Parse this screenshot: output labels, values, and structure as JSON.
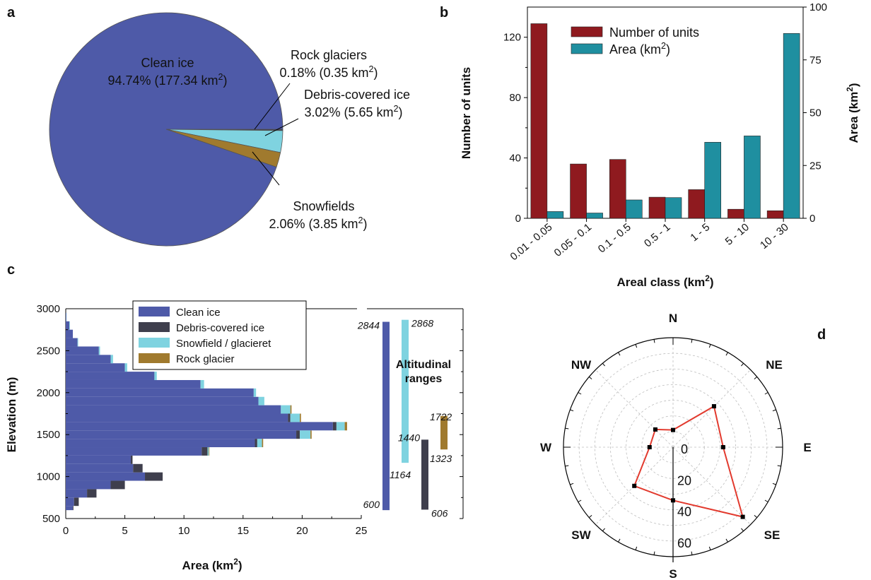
{
  "panel_labels": {
    "a": "a",
    "b": "b",
    "c": "c",
    "d": "d"
  },
  "chart_data": [
    {
      "id": "a",
      "type": "pie",
      "colors": [
        "#4e5aa8",
        "#3f3f4d",
        "#7fd3e0",
        "#a07a2e"
      ],
      "slices": [
        {
          "name": "Clean ice",
          "percent": 94.74,
          "percent_label": "94.74% (177.34 km",
          "area_km2": 177.34
        },
        {
          "name": "Rock glaciers",
          "percent": 0.18,
          "percent_label": "0.18% (0.35 km",
          "area_km2": 0.35
        },
        {
          "name": "Debris-covered ice",
          "percent": 3.02,
          "percent_label": "3.02% (5.65 km",
          "area_km2": 5.65
        },
        {
          "name": "Snowfields",
          "percent": 2.06,
          "percent_label": "2.06% (3.85 km",
          "area_km2": 3.85
        }
      ],
      "unit_sup": "2",
      "close_paren": ")"
    },
    {
      "id": "b",
      "type": "bar",
      "categories": [
        "0.01 - 0.05",
        "0.05 - 0.1",
        "0.1 - 0.5",
        "0.5 - 1",
        "1 - 5",
        "5 - 10",
        "10 - 30"
      ],
      "series": [
        {
          "name": "Number of units",
          "axis": "left",
          "color": "#8f1a1f",
          "values": [
            129,
            36,
            39,
            14,
            19,
            6,
            5
          ]
        },
        {
          "name": "Area (km",
          "name_sup": "2",
          "name_end": ")",
          "axis": "right",
          "color": "#1f8fa0",
          "values": [
            3.2,
            2.5,
            8.7,
            9.8,
            36,
            39,
            87.5
          ]
        }
      ],
      "xlabel": "Areal class (km",
      "xlabel_sup": "2",
      "xlabel_end": ")",
      "ylabel": "Number of units",
      "y2label": "Area (km",
      "y2label_sup": "2",
      "y2label_end": ")",
      "ylim": [
        0,
        140
      ],
      "yticks": [
        0,
        40,
        80,
        120
      ],
      "y2lim": [
        0,
        100
      ],
      "y2ticks": [
        0,
        25,
        50,
        75,
        100
      ],
      "legend_position": "top-left"
    },
    {
      "id": "c",
      "type": "bar",
      "orientation": "horizontal-stacked",
      "series_colors": {
        "clean": "#4e5aa8",
        "debris": "#3f3f4d",
        "snow": "#7fd3e0",
        "rock": "#a07a2e"
      },
      "legend": [
        {
          "key": "clean",
          "label": "Clean ice"
        },
        {
          "key": "debris",
          "label": "Debris-covered ice"
        },
        {
          "key": "snow",
          "label": "Snowfield / glacieret"
        },
        {
          "key": "rock",
          "label": "Rock glacier"
        }
      ],
      "bands": [
        {
          "y0": 600,
          "y1": 650,
          "clean": 0.6,
          "debris": 0.05,
          "snow": 0,
          "rock": 0
        },
        {
          "y0": 650,
          "y1": 750,
          "clean": 0.7,
          "debris": 0.4,
          "snow": 0,
          "rock": 0
        },
        {
          "y0": 750,
          "y1": 850,
          "clean": 1.8,
          "debris": 0.8,
          "snow": 0,
          "rock": 0
        },
        {
          "y0": 850,
          "y1": 950,
          "clean": 3.8,
          "debris": 1.2,
          "snow": 0,
          "rock": 0
        },
        {
          "y0": 950,
          "y1": 1050,
          "clean": 6.7,
          "debris": 1.5,
          "snow": 0,
          "rock": 0
        },
        {
          "y0": 1050,
          "y1": 1150,
          "clean": 5.7,
          "debris": 0.8,
          "snow": 0,
          "rock": 0
        },
        {
          "y0": 1150,
          "y1": 1250,
          "clean": 5.5,
          "debris": 0.15,
          "snow": 0,
          "rock": 0
        },
        {
          "y0": 1250,
          "y1": 1350,
          "clean": 11.5,
          "debris": 0.5,
          "snow": 0.1,
          "rock": 0.05
        },
        {
          "y0": 1350,
          "y1": 1450,
          "clean": 16.0,
          "debris": 0.2,
          "snow": 0.4,
          "rock": 0.1
        },
        {
          "y0": 1450,
          "y1": 1550,
          "clean": 19.5,
          "debris": 0.3,
          "snow": 0.9,
          "rock": 0.1
        },
        {
          "y0": 1550,
          "y1": 1650,
          "clean": 22.6,
          "debris": 0.3,
          "snow": 0.7,
          "rock": 0.2
        },
        {
          "y0": 1650,
          "y1": 1750,
          "clean": 18.8,
          "debris": 0.2,
          "snow": 0.8,
          "rock": 0.1
        },
        {
          "y0": 1750,
          "y1": 1850,
          "clean": 18.2,
          "debris": 0,
          "snow": 0.8,
          "rock": 0.1
        },
        {
          "y0": 1850,
          "y1": 1950,
          "clean": 16.3,
          "debris": 0,
          "snow": 0.5,
          "rock": 0
        },
        {
          "y0": 1950,
          "y1": 2050,
          "clean": 15.9,
          "debris": 0,
          "snow": 0.2,
          "rock": 0
        },
        {
          "y0": 2050,
          "y1": 2150,
          "clean": 11.4,
          "debris": 0,
          "snow": 0.3,
          "rock": 0
        },
        {
          "y0": 2150,
          "y1": 2250,
          "clean": 7.5,
          "debris": 0,
          "snow": 0.2,
          "rock": 0
        },
        {
          "y0": 2250,
          "y1": 2350,
          "clean": 5.0,
          "debris": 0,
          "snow": 0.2,
          "rock": 0
        },
        {
          "y0": 2350,
          "y1": 2450,
          "clean": 3.8,
          "debris": 0,
          "snow": 0.2,
          "rock": 0
        },
        {
          "y0": 2450,
          "y1": 2550,
          "clean": 2.8,
          "debris": 0,
          "snow": 0.1,
          "rock": 0
        },
        {
          "y0": 2550,
          "y1": 2650,
          "clean": 1.0,
          "debris": 0,
          "snow": 0.05,
          "rock": 0
        },
        {
          "y0": 2650,
          "y1": 2750,
          "clean": 0.6,
          "debris": 0,
          "snow": 0,
          "rock": 0
        },
        {
          "y0": 2750,
          "y1": 2850,
          "clean": 0.3,
          "debris": 0,
          "snow": 0.05,
          "rock": 0
        },
        {
          "y0": 2850,
          "y1": 2950,
          "clean": 0.05,
          "debris": 0,
          "snow": 0.02,
          "rock": 0
        }
      ],
      "xlabel": "Area (km",
      "xlabel_sup": "2",
      "xlabel_end": ")",
      "ylabel": "Elevation (m)",
      "xlim": [
        0,
        25
      ],
      "xticks": [
        0,
        5,
        10,
        15,
        20,
        25
      ],
      "ylim": [
        500,
        3000
      ],
      "yticks": [
        500,
        1000,
        1500,
        2000,
        2500,
        3000
      ],
      "ranges_title_1": "Altitudinal",
      "ranges_title_2": "ranges",
      "ranges": [
        {
          "key": "clean",
          "min": 600,
          "max": 2844,
          "min_label": "600",
          "max_label": "2844"
        },
        {
          "key": "snow",
          "min": 1164,
          "max": 2868,
          "min_label": "1164",
          "max_label": "2868"
        },
        {
          "key": "debris",
          "min": 606,
          "max": 1440,
          "min_label": "606",
          "max_label": "1440"
        },
        {
          "key": "rock",
          "min": 1323,
          "max": 1722,
          "min_label": "1323",
          "max_label": "1722"
        }
      ]
    },
    {
      "id": "d",
      "type": "line",
      "projection": "polar",
      "directions": [
        "N",
        "NE",
        "E",
        "SE",
        "S",
        "SW",
        "W",
        "NW"
      ],
      "values": [
        11,
        37,
        32,
        63,
        34,
        35,
        15,
        16
      ],
      "rlim": [
        0,
        70
      ],
      "rticks": [
        0,
        20,
        40,
        60
      ],
      "line_color": "#e23a2e",
      "marker_color": "#000000"
    }
  ]
}
